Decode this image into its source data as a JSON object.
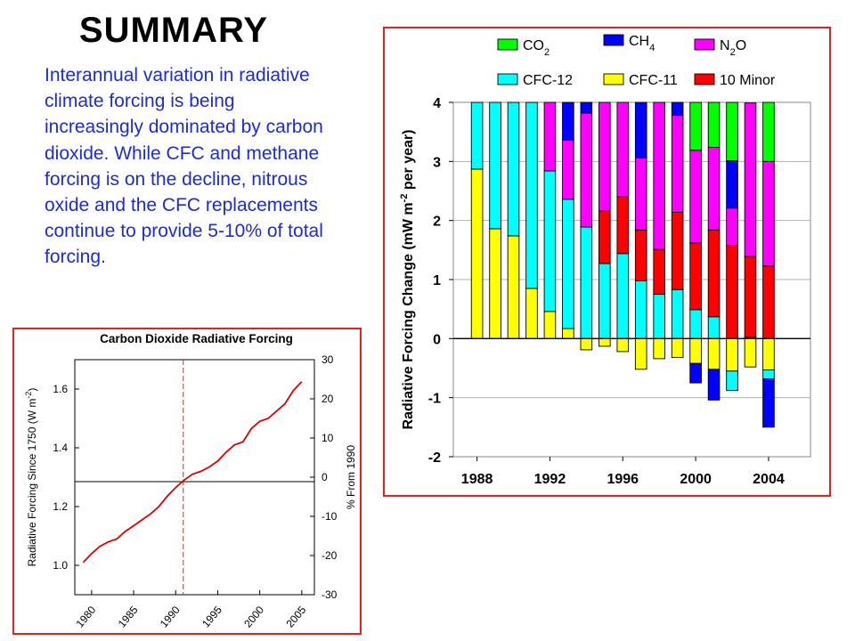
{
  "slide": {
    "title": "SUMMARY",
    "description": "Interannual variation in radiative climate forcing is being increasingly dominated by carbon dioxide.  While CFC and methane forcing is on the decline, nitrous oxide and the CFC replacements continue to provide 5-10% of total forcing."
  },
  "chart_data": [
    {
      "type": "bar",
      "stacked": true,
      "ylabel": "Radiative Forcing Change (mW m-2 per year)",
      "ylabel_parts": {
        "before": "Radiative Forcing Change (mW m",
        "sup": "-2",
        "after": " per year)"
      },
      "ylim": [
        -2,
        4
      ],
      "yticks": [
        -2,
        -1,
        0,
        1,
        2,
        3,
        4
      ],
      "xticks": [
        1988,
        1992,
        1996,
        2000,
        2004
      ],
      "grid": true,
      "legend_position": "top",
      "categories": [
        1988,
        1989,
        1990,
        1991,
        1992,
        1993,
        1994,
        1995,
        1996,
        1997,
        1998,
        1999,
        2000,
        2001,
        2002,
        2003,
        2004
      ],
      "series": [
        {
          "name": "CFC-11",
          "legend_main": "CFC-11",
          "legend_sub": "",
          "color": "#ffff00",
          "values": [
            2.87,
            1.86,
            1.74,
            0.85,
            0.46,
            0.17,
            -0.19,
            -0.13,
            -0.22,
            -0.52,
            -0.34,
            -0.32,
            -0.42,
            -0.52,
            -0.55,
            -0.48,
            -0.53
          ]
        },
        {
          "name": "CFC-12",
          "legend_main": "CFC-12",
          "legend_sub": "",
          "color": "#00ffff",
          "values": [
            1.13,
            2.14,
            2.26,
            3.15,
            2.38,
            2.19,
            1.89,
            1.27,
            1.44,
            0.98,
            0.75,
            0.83,
            0.49,
            0.37,
            -0.33,
            0.02,
            -0.15
          ]
        },
        {
          "name": "10 Minor",
          "legend_main": "10 Minor",
          "legend_sub": "",
          "color": "#ff0000",
          "values": [
            0,
            0,
            0,
            0,
            0,
            0,
            0,
            0.89,
            0.96,
            0.86,
            0.76,
            1.31,
            1.13,
            1.47,
            1.58,
            1.37,
            1.23
          ]
        },
        {
          "name": "N2O",
          "legend_main": "N",
          "legend_sub": "2",
          "legend_after": "O",
          "color": "#ff00ff",
          "values": [
            0,
            0,
            0,
            0,
            1.16,
            1.0,
            1.93,
            1.84,
            1.6,
            1.22,
            2.49,
            1.64,
            1.57,
            1.4,
            0.63,
            2.6,
            1.77
          ]
        },
        {
          "name": "CH4",
          "legend_main": "CH",
          "legend_sub": "4",
          "legend_after": "",
          "color": "#0000ff",
          "values": [
            0,
            0,
            0,
            0,
            0,
            0.64,
            0.18,
            0,
            0,
            0.94,
            0,
            0.22,
            -0.33,
            -0.52,
            0.8,
            0,
            -0.82
          ]
        },
        {
          "name": "CO2",
          "legend_main": "CO",
          "legend_sub": "2",
          "legend_after": "",
          "color": "#00ff00",
          "values": [
            0,
            0,
            0,
            0,
            0,
            0,
            0,
            0,
            0,
            0,
            0,
            0,
            0.81,
            0.76,
            0.99,
            0,
            1.0
          ]
        }
      ]
    },
    {
      "type": "line",
      "title": "Carbon Dioxide Radiative Forcing",
      "ylabel": "Radiative Forcing Since 1750 (W m-2)",
      "ylabel_parts": {
        "before": "Radiative Forcing Since 1750 (W m",
        "sup": "-2",
        "after": ")"
      },
      "y2label": "% From 1990",
      "ylim": [
        0.9,
        1.7
      ],
      "yticks": [
        1.0,
        1.2,
        1.4,
        1.6
      ],
      "y2lim": [
        -30,
        30
      ],
      "y2ticks": [
        -30,
        -20,
        -10,
        0,
        10,
        20,
        30
      ],
      "xlim": [
        1978,
        2006.5
      ],
      "xticks": [
        1980,
        1985,
        1990,
        1995,
        2000,
        2005
      ],
      "reference_year": 1990.9,
      "reference_value": 1.285,
      "color": "#dd0000",
      "x": [
        1979,
        1980,
        1981,
        1982,
        1983,
        1984,
        1985,
        1986,
        1987,
        1988,
        1989,
        1990,
        1991,
        1992,
        1993,
        1994,
        1995,
        1996,
        1997,
        1998,
        1999,
        2000,
        2001,
        2002,
        2003,
        2004,
        2005
      ],
      "y": [
        1.01,
        1.04,
        1.065,
        1.08,
        1.09,
        1.115,
        1.135,
        1.155,
        1.175,
        1.2,
        1.235,
        1.265,
        1.29,
        1.31,
        1.32,
        1.335,
        1.355,
        1.385,
        1.41,
        1.42,
        1.465,
        1.49,
        1.5,
        1.525,
        1.55,
        1.595,
        1.625
      ]
    }
  ]
}
